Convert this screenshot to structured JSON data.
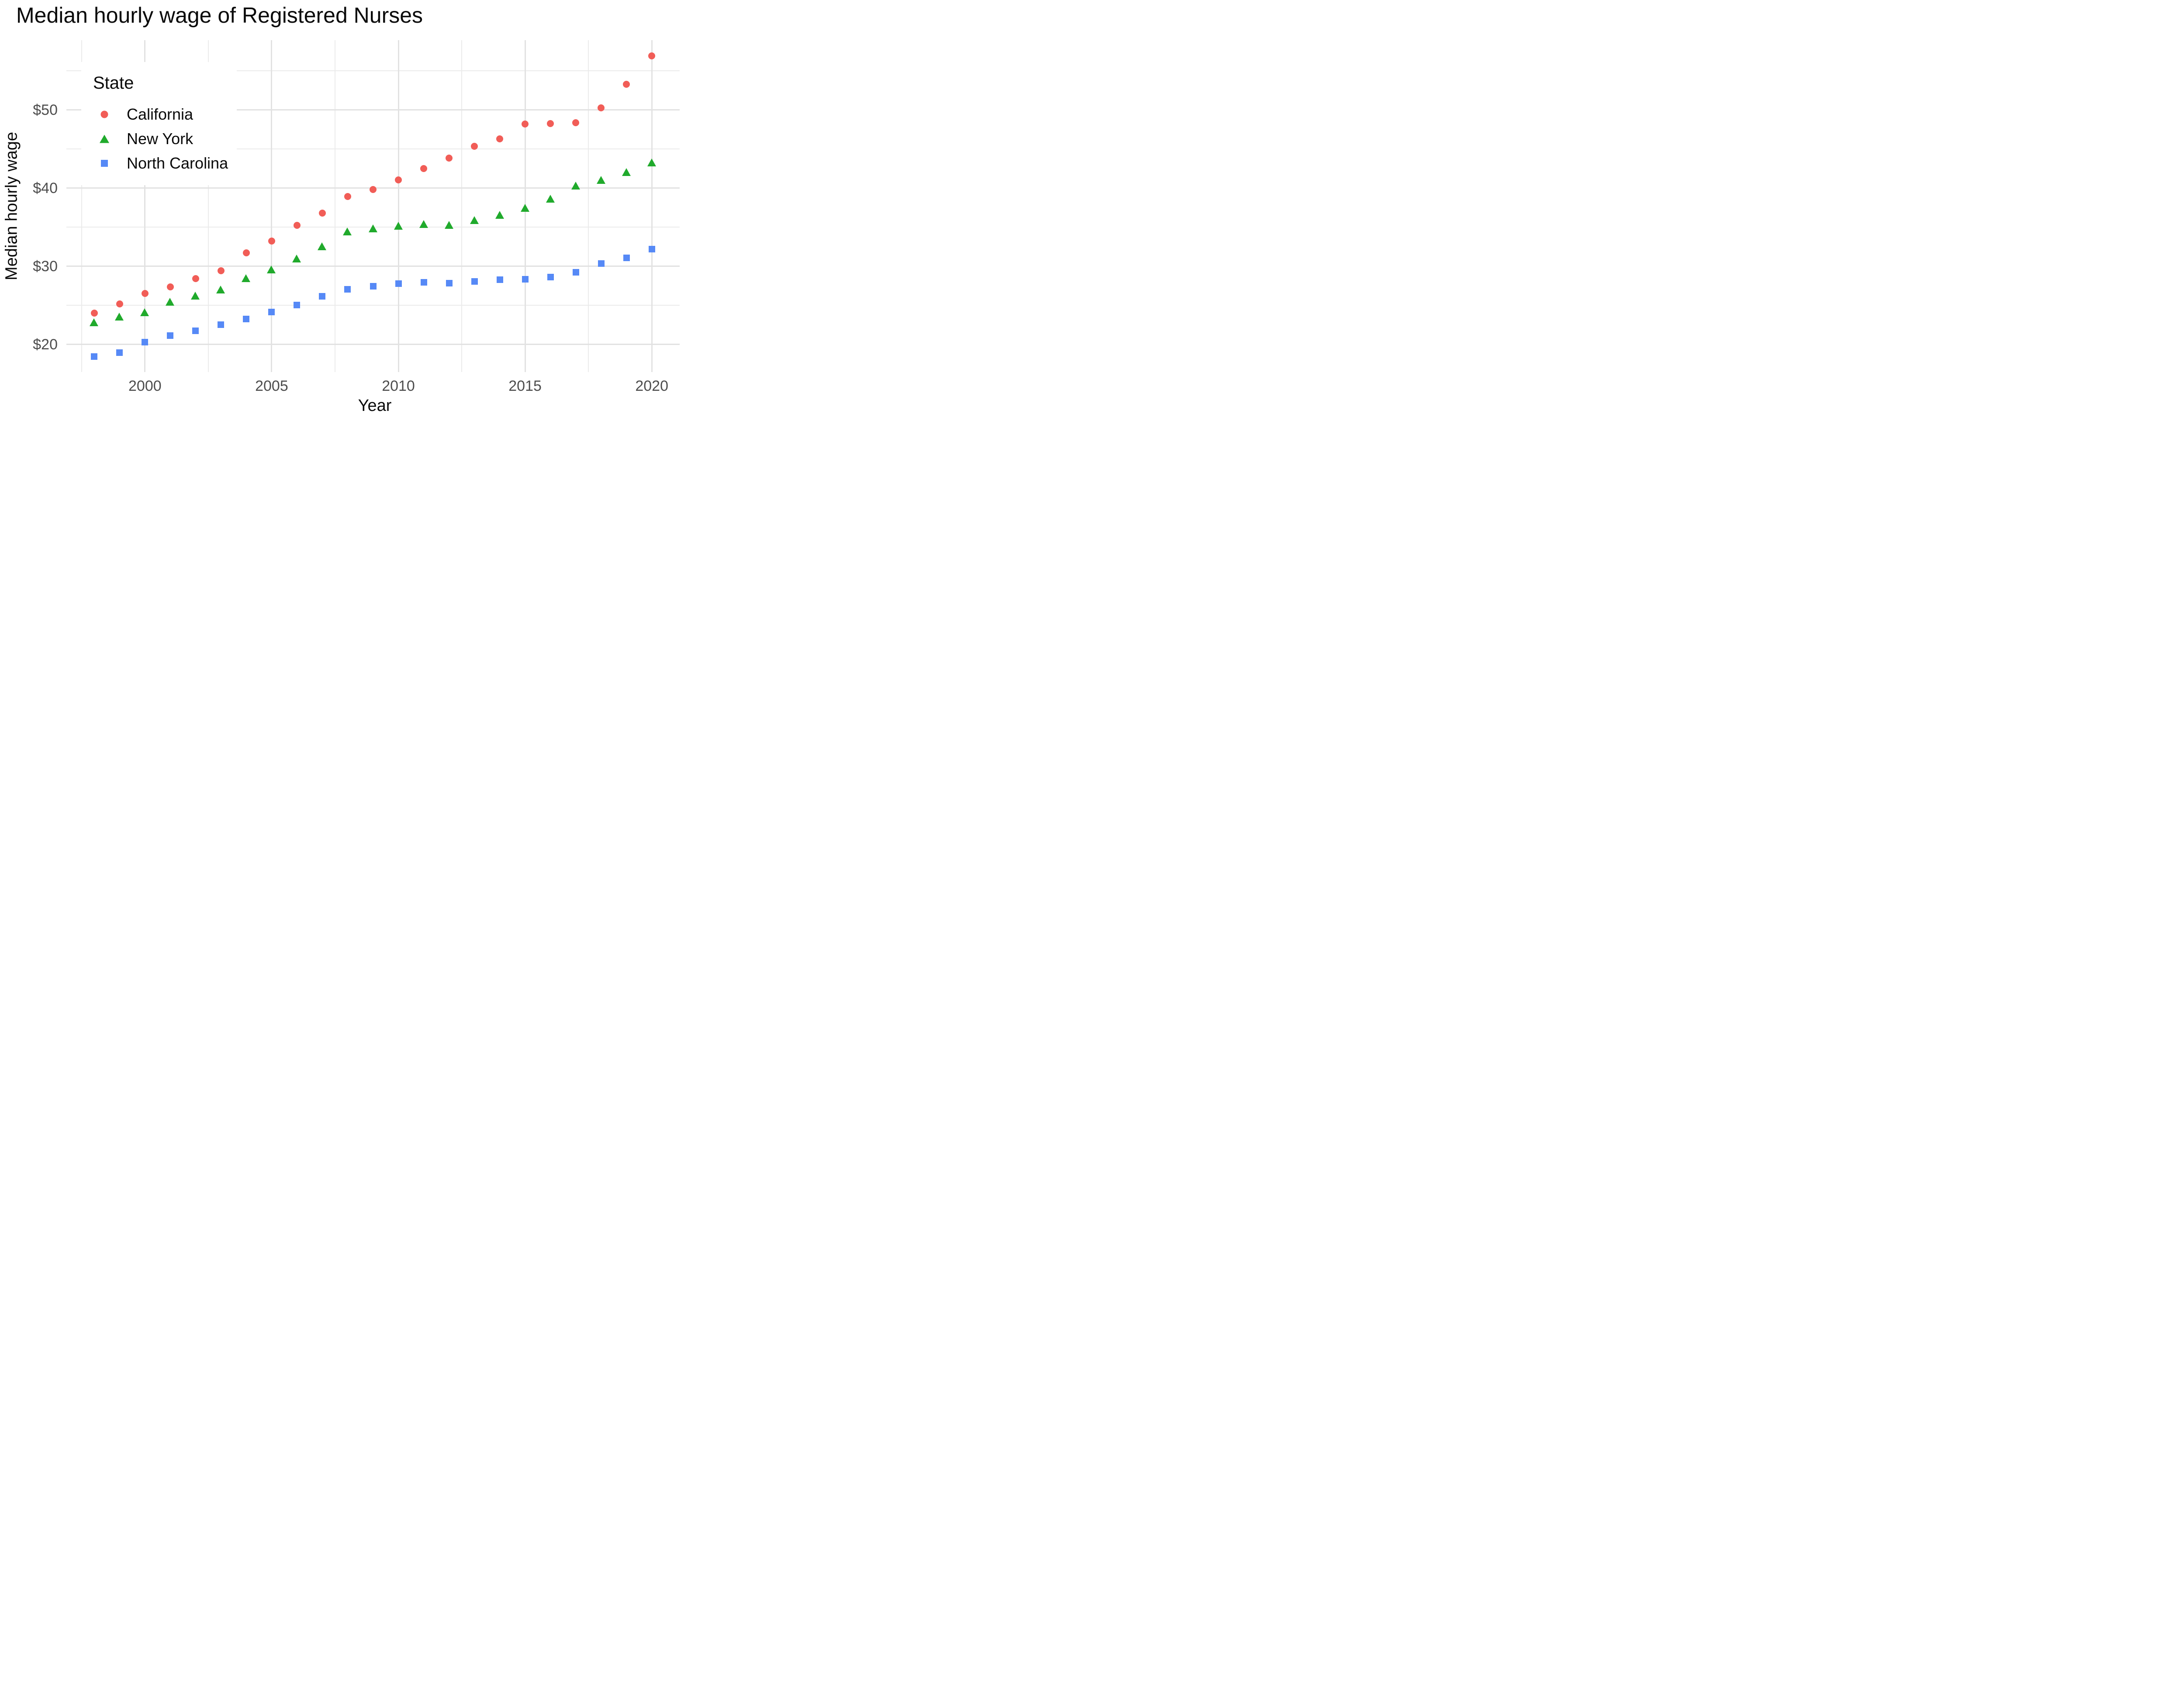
{
  "title": "Median hourly wage of Registered Nurses",
  "chart_data": {
    "type": "scatter",
    "title": "Median hourly wage of Registered Nurses",
    "xlabel": "Year",
    "ylabel": "Median hourly wage",
    "xlim": [
      1996.9,
      2021.1
    ],
    "ylim": [
      16.5,
      58.9
    ],
    "x_major_ticks": [
      2000,
      2005,
      2010,
      2015,
      2020
    ],
    "x_tick_labels": [
      "2000",
      "2005",
      "2010",
      "2015",
      "2020"
    ],
    "x_minor_gridlines": [
      1997.5,
      2002.5,
      2007.5,
      2012.5,
      2017.5
    ],
    "y_major_ticks": [
      20,
      30,
      40,
      50
    ],
    "y_tick_labels": [
      "$20",
      "$30",
      "$40",
      "$50"
    ],
    "y_minor_gridlines": [
      25,
      35,
      45,
      55
    ],
    "grid": "major+minor",
    "legend": {
      "title": "State",
      "position": "inside-top-left"
    },
    "x": [
      1998,
      1999,
      2000,
      2001,
      2002,
      2003,
      2004,
      2005,
      2006,
      2007,
      2008,
      2009,
      2010,
      2011,
      2012,
      2013,
      2014,
      2015,
      2016,
      2017,
      2018,
      2019,
      2020
    ],
    "series": [
      {
        "name": "California",
        "marker": "circle",
        "color": "#f15d57",
        "values": [
          23.99,
          25.19,
          26.55,
          27.36,
          28.41,
          29.42,
          31.72,
          33.25,
          35.26,
          36.81,
          38.92,
          39.85,
          41.07,
          42.52,
          43.87,
          45.36,
          46.29,
          48.21,
          48.24,
          48.39,
          50.25,
          53.28,
          56.9
        ]
      },
      {
        "name": "New York",
        "marker": "triangle",
        "color": "#20aa2c",
        "values": [
          22.83,
          23.57,
          24.14,
          25.45,
          26.26,
          27.05,
          28.49,
          29.62,
          30.97,
          32.57,
          34.44,
          34.83,
          35.17,
          35.42,
          35.27,
          35.9,
          36.6,
          37.48,
          38.65,
          40.34,
          41.07,
          42.08,
          43.29
        ]
      },
      {
        "name": "North Carolina",
        "marker": "square",
        "color": "#5689f6",
        "values": [
          18.46,
          18.96,
          20.28,
          21.16,
          21.73,
          22.55,
          23.27,
          24.13,
          25.05,
          26.16,
          27.04,
          27.45,
          27.76,
          27.96,
          27.85,
          28.06,
          28.26,
          28.33,
          28.6,
          29.22,
          30.35,
          31.07,
          32.22
        ]
      }
    ]
  }
}
